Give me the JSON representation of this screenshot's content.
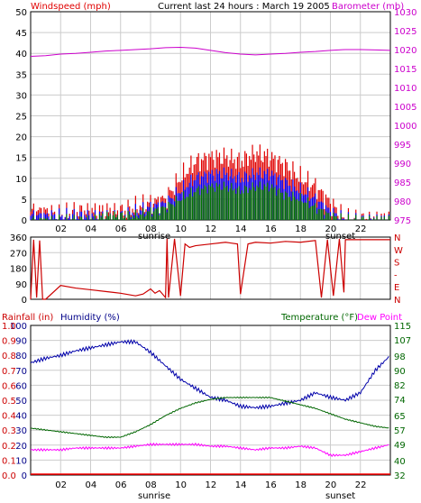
{
  "header": {
    "left_label": "Windspeed (mph)",
    "center_label": "Current last 24 hours : March 19 2005",
    "right_label": "Barometer (mb)"
  },
  "colors": {
    "grid": "#cccccc",
    "wind": "#e00000",
    "wind_mid": "#0000ff",
    "wind_low": "#007700",
    "barometer": "#cc00cc",
    "direction": "#cc0000",
    "humidity": "#0000aa",
    "temperature": "#006600",
    "dewpoint": "#ff00ff",
    "rainfall": "#ff0000",
    "hum_axis": "#000088",
    "temp_axis": "#006600"
  },
  "x_ticks": [
    "02",
    "04",
    "06",
    "08",
    "10",
    "12",
    "14",
    "16",
    "18",
    "20",
    "22"
  ],
  "annotations": {
    "sunrise": "sunrise",
    "sunset": "sunset"
  },
  "chart_data": [
    {
      "type": "bar",
      "title": "Current last 24 hours : March 19 2005",
      "ylabel": "Windspeed (mph)",
      "y2label": "Barometer (mb)",
      "ylim": [
        0,
        50
      ],
      "y2lim": [
        975,
        1030
      ],
      "yticks": [
        "0",
        "5",
        "10",
        "15",
        "20",
        "25",
        "30",
        "35",
        "40",
        "45",
        "50"
      ],
      "y2ticks": [
        "975",
        "980",
        "985",
        "990",
        "995",
        "1000",
        "1005",
        "1010",
        "1015",
        "1020",
        "1025",
        "1030"
      ],
      "x_hours": [
        0,
        1,
        2,
        3,
        4,
        5,
        6,
        7,
        8,
        9,
        10,
        11,
        12,
        13,
        14,
        15,
        16,
        17,
        18,
        19,
        20,
        21,
        22,
        23,
        24
      ],
      "series": [
        {
          "name": "gust",
          "values": [
            2,
            2,
            1,
            2,
            2,
            2,
            2,
            3,
            4,
            5,
            10,
            14,
            15,
            15,
            14,
            16,
            15,
            13,
            10,
            8,
            4,
            0,
            0,
            0,
            0
          ]
        },
        {
          "name": "average",
          "values": [
            1,
            1,
            1,
            1,
            1,
            1,
            1,
            2,
            3,
            4,
            7,
            10,
            11,
            11,
            10,
            11,
            11,
            9,
            7,
            5,
            2,
            0,
            0,
            0,
            0
          ]
        },
        {
          "name": "low",
          "values": [
            0,
            0,
            0,
            0,
            0,
            1,
            1,
            1,
            2,
            3,
            5,
            7,
            8,
            8,
            7,
            8,
            8,
            6,
            5,
            3,
            1,
            0,
            0,
            0,
            0
          ]
        },
        {
          "name": "barometer",
          "values": [
            1018.2,
            1018.4,
            1018.8,
            1019.0,
            1019.3,
            1019.6,
            1019.8,
            1020.0,
            1020.2,
            1020.5,
            1020.6,
            1020.4,
            1019.8,
            1019.2,
            1018.8,
            1018.6,
            1018.8,
            1019.0,
            1019.3,
            1019.5,
            1019.8,
            1020.0,
            1020.0,
            1019.9,
            1019.8
          ]
        }
      ]
    },
    {
      "type": "line",
      "ylabel": "Wind direction",
      "ylim": [
        0,
        360
      ],
      "yticks": [
        "0",
        "90",
        "180",
        "270",
        "360"
      ],
      "compass": [
        "N",
        "W",
        "S",
        "-",
        "E",
        "N"
      ],
      "x_hours": [
        0,
        0.2,
        0.4,
        0.6,
        0.8,
        1.0,
        2.0,
        3.0,
        4.0,
        5.0,
        6.0,
        7.0,
        7.5,
        8.0,
        8.3,
        8.6,
        9.0,
        9.1,
        9.2,
        9.6,
        10.0,
        10.3,
        10.6,
        11.0,
        12.0,
        13.0,
        13.8,
        14.0,
        14.5,
        15.0,
        16.0,
        17.0,
        18.0,
        19.0,
        19.4,
        19.8,
        20.2,
        20.6,
        20.9,
        21.0,
        24.0
      ],
      "values": [
        0,
        345,
        10,
        340,
        0,
        0,
        80,
        65,
        55,
        45,
        35,
        20,
        30,
        60,
        35,
        50,
        10,
        350,
        10,
        350,
        20,
        320,
        300,
        310,
        320,
        330,
        320,
        30,
        320,
        330,
        325,
        335,
        330,
        340,
        10,
        345,
        20,
        350,
        40,
        345,
        345
      ]
    },
    {
      "type": "line",
      "ylabel": "Humidity (%)",
      "y2label": "Temperature (°F)",
      "y3label": "Rainfall (in)",
      "y4label": "Dew Point",
      "ylim": [
        0,
        100
      ],
      "y2lim": [
        32,
        115
      ],
      "y3lim": [
        0,
        1
      ],
      "rain_ticks": [
        "0.0",
        "0.1",
        "0.2",
        "0.3",
        "0.4",
        "0.5",
        "0.6",
        "0.7",
        "0.8",
        "0.9",
        "1.0"
      ],
      "hum_ticks": [
        "0",
        "10",
        "20",
        "30",
        "40",
        "50",
        "60",
        "70",
        "80",
        "90",
        "100"
      ],
      "temp_ticks": [
        "32",
        "40",
        "49",
        "57",
        "65",
        "74",
        "82",
        "90",
        "98",
        "107",
        "115"
      ],
      "x_hours": [
        0,
        1,
        2,
        3,
        4,
        5,
        6,
        7,
        8,
        9,
        10,
        11,
        12,
        13,
        14,
        15,
        16,
        17,
        18,
        19,
        20,
        21,
        22,
        23,
        24
      ],
      "series": [
        {
          "name": "Humidity (%)",
          "values": [
            75,
            78,
            80,
            83,
            85,
            87,
            89,
            89,
            82,
            73,
            64,
            58,
            52,
            50,
            46,
            45,
            46,
            48,
            50,
            55,
            52,
            50,
            55,
            70,
            80
          ]
        },
        {
          "name": "Temperature (°F)",
          "values": [
            58,
            57,
            56,
            55,
            54,
            53,
            53,
            56,
            60,
            65,
            69,
            72,
            74,
            75,
            75,
            75,
            75,
            73,
            71,
            69,
            66,
            63,
            61,
            59,
            58
          ]
        },
        {
          "name": "Dew Point",
          "values": [
            46,
            46,
            46,
            47,
            47,
            47,
            47,
            48,
            49,
            49,
            49,
            49,
            48,
            48,
            47,
            46,
            47,
            47,
            48,
            47,
            43,
            43,
            45,
            47,
            49
          ]
        },
        {
          "name": "Rainfall (in)",
          "values": [
            0,
            0,
            0,
            0,
            0,
            0,
            0,
            0,
            0,
            0,
            0,
            0,
            0,
            0,
            0,
            0,
            0,
            0,
            0,
            0,
            0,
            0,
            0,
            0,
            0
          ]
        }
      ]
    }
  ],
  "panel3": {
    "rain_label": "Rainfall (in)",
    "humidity_label": "Humidity (%)",
    "temp_label": "Temperature (°F)",
    "dew_label": "Dew Point"
  }
}
